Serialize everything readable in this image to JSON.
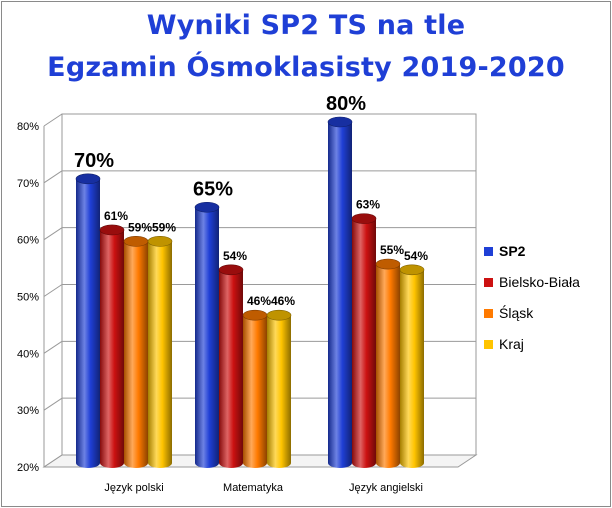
{
  "chart_data": {
    "type": "bar",
    "title": "Wyniki SP2 TS na tle",
    "subtitle": "Egzamin Ósmoklasisty 2019-2020",
    "categories": [
      "Język polski",
      "Matematyka",
      "Język angielski"
    ],
    "series": [
      {
        "name": "SP2",
        "values": [
          70,
          65,
          80
        ],
        "labels": [
          "70%",
          "65%",
          "80%"
        ],
        "color": "#1f3fd6"
      },
      {
        "name": "Bielsko-Biała",
        "values": [
          61,
          54,
          63
        ],
        "labels": [
          "61%",
          "54%",
          "63%"
        ],
        "color": "#cc1111"
      },
      {
        "name": "Śląsk",
        "values": [
          59,
          46,
          55
        ],
        "labels": [
          "59%",
          "46%",
          "55%"
        ],
        "color": "#ff7a00"
      },
      {
        "name": "Kraj",
        "values": [
          59,
          46,
          54
        ],
        "labels": [
          "59%",
          "46%",
          "54%"
        ],
        "color": "#ffc400"
      }
    ],
    "ylim": [
      20,
      80
    ],
    "yticks": [
      "20%",
      "30%",
      "40%",
      "50%",
      "60%",
      "70%",
      "80%"
    ],
    "grid": true,
    "legend": "right"
  }
}
